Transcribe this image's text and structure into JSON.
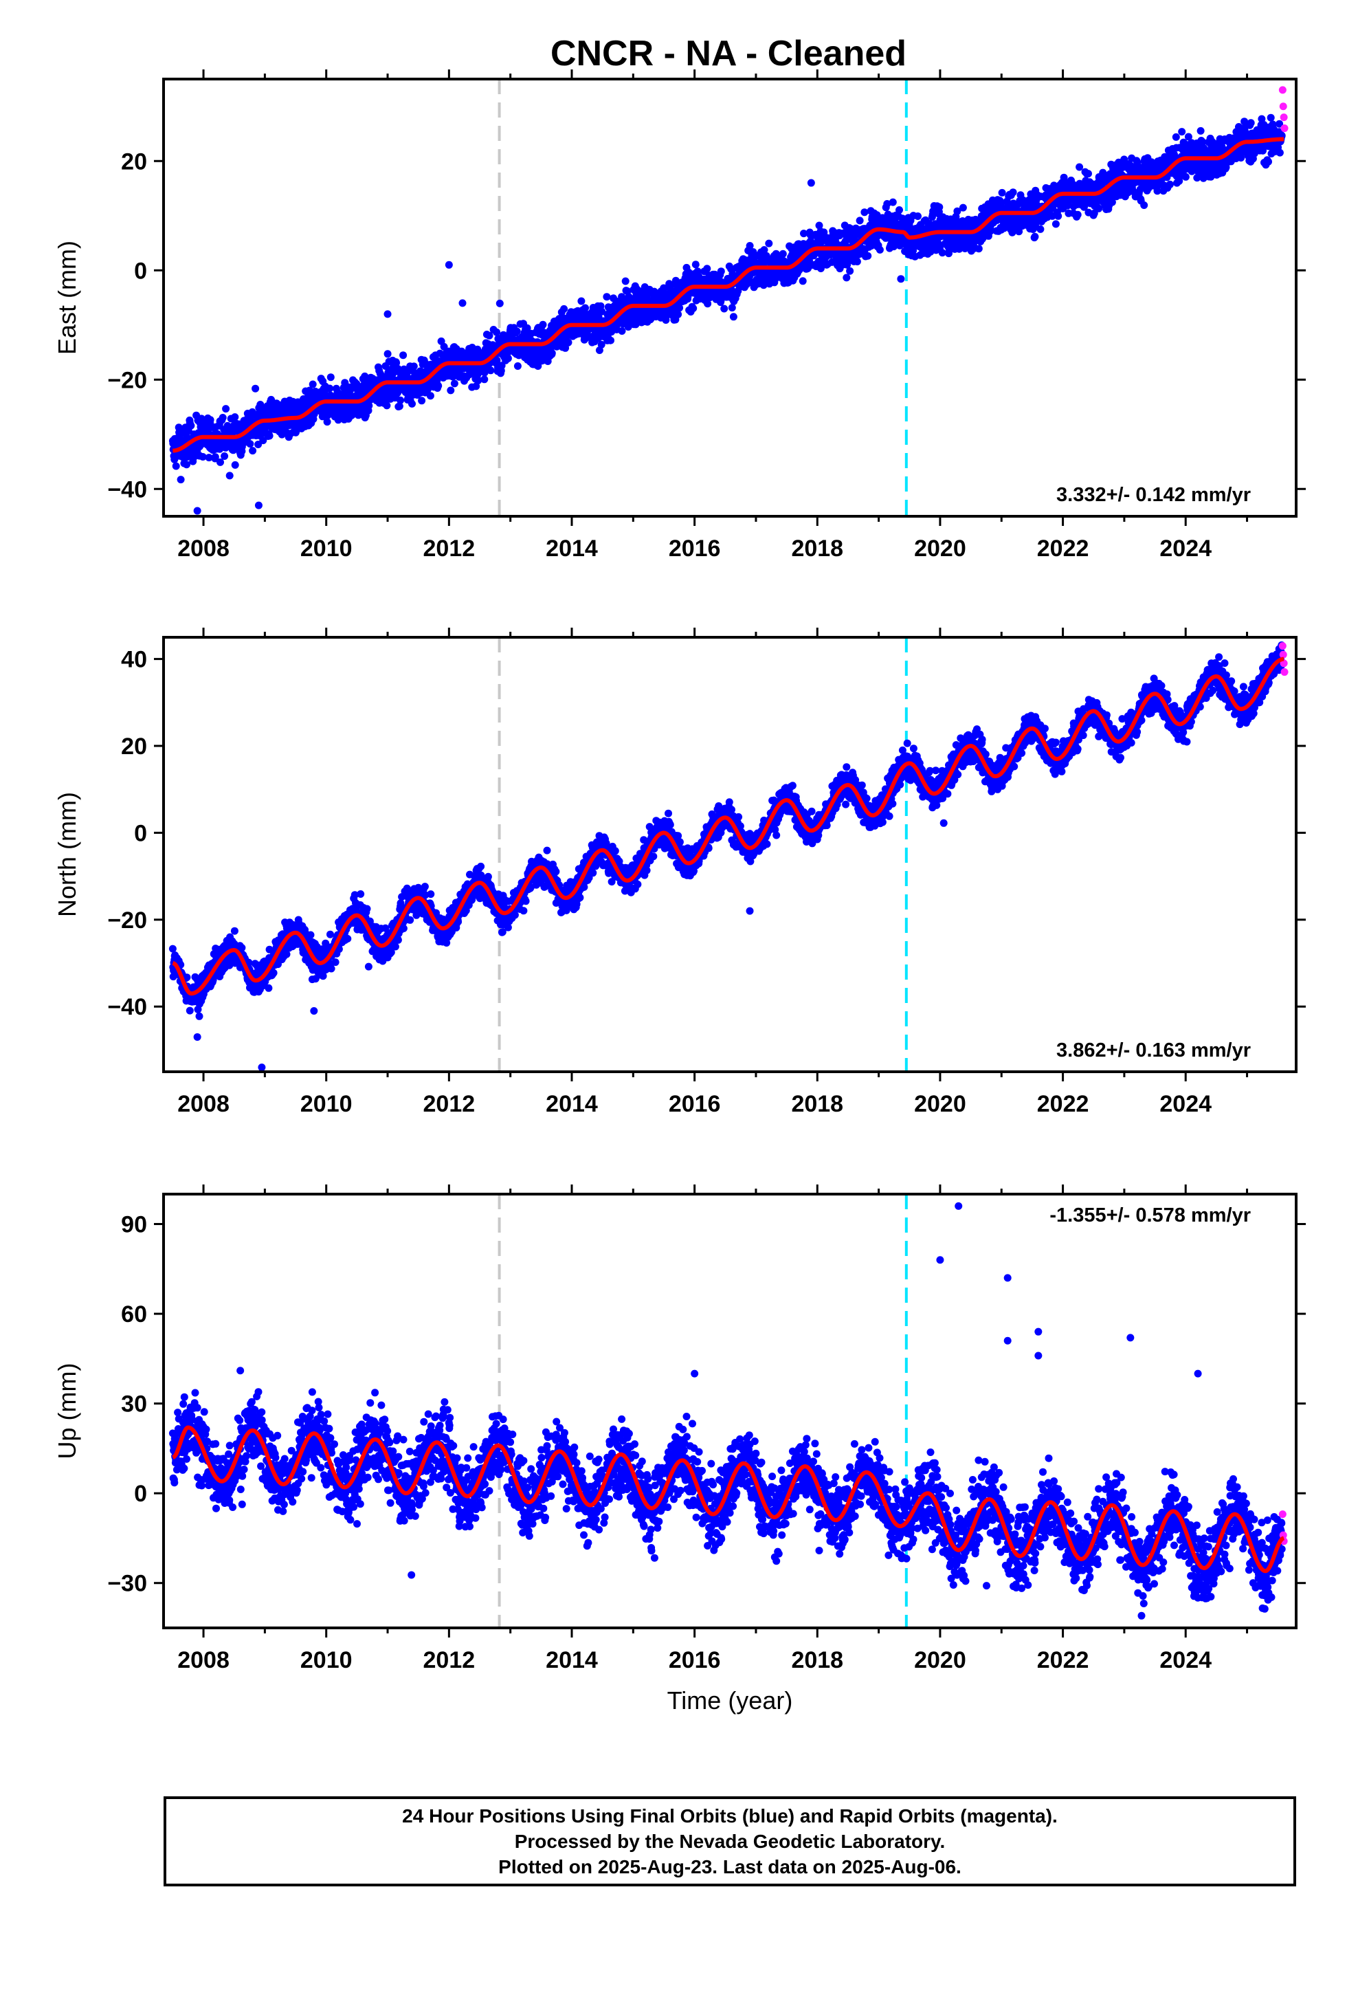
{
  "title": "CNCR  - NA - Cleaned",
  "colors": {
    "final_orbits": "#0000ff",
    "rapid_orbits": "#ff1aff",
    "model_fit": "#ff0000",
    "event_line_1": "#c8c8c8",
    "event_line_2": "#00e5ff"
  },
  "chart_data": [
    {
      "type": "scatter",
      "component": "east",
      "ylabel": "East (mm)",
      "xlabel": "",
      "xlim": [
        2007.35,
        2025.8
      ],
      "ylim": [
        -45,
        35
      ],
      "yticks": [
        -40,
        -20,
        0,
        20
      ],
      "xticks": [
        2008,
        2010,
        2012,
        2014,
        2016,
        2018,
        2020,
        2022,
        2024
      ],
      "rate_label": "3.332+/- 0.142 mm/yr",
      "rate_position": "bottom-right",
      "start_value": -33,
      "rate_mm_per_yr": 3.332,
      "seasonal_amplitude_mm": 1.2,
      "scatter_mm": 1.8,
      "offset_at_2019_45_mm": -1.0,
      "event_lines": [
        2012.82,
        2019.45
      ],
      "fit_curve": [
        [
          2007.5,
          -33
        ],
        [
          2008.0,
          -30.5
        ],
        [
          2008.5,
          -30.5
        ],
        [
          2009.0,
          -27.5
        ],
        [
          2009.5,
          -27
        ],
        [
          2010.0,
          -24
        ],
        [
          2010.5,
          -24
        ],
        [
          2011.0,
          -20.5
        ],
        [
          2011.5,
          -20.5
        ],
        [
          2012.0,
          -17
        ],
        [
          2012.5,
          -17
        ],
        [
          2013.0,
          -13.5
        ],
        [
          2013.5,
          -13.5
        ],
        [
          2014.0,
          -10
        ],
        [
          2014.5,
          -10
        ],
        [
          2015.0,
          -6.5
        ],
        [
          2015.5,
          -6.5
        ],
        [
          2016.0,
          -3
        ],
        [
          2016.5,
          -3
        ],
        [
          2017.0,
          0.5
        ],
        [
          2017.5,
          0.5
        ],
        [
          2018.0,
          4
        ],
        [
          2018.5,
          4
        ],
        [
          2019.0,
          7.5
        ],
        [
          2019.4,
          7
        ],
        [
          2019.5,
          6
        ],
        [
          2020.0,
          7
        ],
        [
          2020.5,
          7
        ],
        [
          2021.0,
          10.5
        ],
        [
          2021.5,
          10.5
        ],
        [
          2022.0,
          14
        ],
        [
          2022.5,
          14
        ],
        [
          2023.0,
          17
        ],
        [
          2023.5,
          17
        ],
        [
          2024.0,
          20.5
        ],
        [
          2024.5,
          20.5
        ],
        [
          2025.0,
          23.5
        ],
        [
          2025.6,
          24
        ]
      ],
      "outliers": [
        [
          2007.9,
          -44
        ],
        [
          2008.9,
          -43
        ],
        [
          2012.0,
          1
        ],
        [
          2011.0,
          -8
        ],
        [
          2017.9,
          16
        ]
      ],
      "rapid_points": [
        [
          2025.58,
          33
        ],
        [
          2025.59,
          30
        ],
        [
          2025.6,
          28
        ],
        [
          2025.61,
          26
        ]
      ]
    },
    {
      "type": "scatter",
      "component": "north",
      "ylabel": "North (mm)",
      "xlabel": "",
      "xlim": [
        2007.35,
        2025.8
      ],
      "ylim": [
        -55,
        45
      ],
      "yticks": [
        -40,
        -20,
        0,
        20,
        40
      ],
      "xticks": [
        2008,
        2010,
        2012,
        2014,
        2016,
        2018,
        2020,
        2022,
        2024
      ],
      "rate_label": "3.862+/- 0.163 mm/yr",
      "rate_position": "bottom-right",
      "start_value": -33,
      "rate_mm_per_yr": 3.862,
      "seasonal_amplitude_mm": 4.5,
      "scatter_mm": 1.8,
      "offset_at_2019_45_mm": 0,
      "event_lines": [
        2012.82,
        2019.45
      ],
      "fit_curve": [
        [
          2007.5,
          -30
        ],
        [
          2007.8,
          -37
        ],
        [
          2008.5,
          -27
        ],
        [
          2008.85,
          -34
        ],
        [
          2009.5,
          -23
        ],
        [
          2009.9,
          -30
        ],
        [
          2010.5,
          -19
        ],
        [
          2010.9,
          -26
        ],
        [
          2011.5,
          -15
        ],
        [
          2011.9,
          -22
        ],
        [
          2012.5,
          -11.5
        ],
        [
          2012.9,
          -18.5
        ],
        [
          2013.5,
          -8
        ],
        [
          2013.9,
          -15
        ],
        [
          2014.5,
          -4
        ],
        [
          2014.9,
          -11
        ],
        [
          2015.5,
          0
        ],
        [
          2015.9,
          -7
        ],
        [
          2016.5,
          3.5
        ],
        [
          2016.9,
          -3.5
        ],
        [
          2017.5,
          7.5
        ],
        [
          2017.9,
          0.5
        ],
        [
          2018.5,
          11
        ],
        [
          2018.9,
          4
        ],
        [
          2019.5,
          16
        ],
        [
          2019.9,
          9
        ],
        [
          2020.5,
          20
        ],
        [
          2020.9,
          13
        ],
        [
          2021.5,
          24
        ],
        [
          2021.9,
          17
        ],
        [
          2022.5,
          28
        ],
        [
          2022.9,
          21
        ],
        [
          2023.5,
          32
        ],
        [
          2023.9,
          25
        ],
        [
          2024.5,
          36
        ],
        [
          2024.9,
          28.5
        ],
        [
          2025.6,
          40
        ]
      ],
      "outliers": [
        [
          2007.9,
          -47
        ],
        [
          2008.95,
          -54
        ],
        [
          2009.8,
          -41
        ],
        [
          2016.9,
          -18
        ]
      ],
      "rapid_points": [
        [
          2025.58,
          43
        ],
        [
          2025.59,
          41
        ],
        [
          2025.6,
          39
        ],
        [
          2025.61,
          37
        ]
      ]
    },
    {
      "type": "scatter",
      "component": "up",
      "ylabel": "Up (mm)",
      "xlabel": "Time (year)",
      "xlim": [
        2007.35,
        2025.8
      ],
      "ylim": [
        -45,
        100
      ],
      "yticks": [
        -30,
        0,
        30,
        60,
        90
      ],
      "xticks": [
        2008,
        2010,
        2012,
        2014,
        2016,
        2018,
        2020,
        2022,
        2024
      ],
      "rate_label": "-1.355+/- 0.578 mm/yr",
      "rate_position": "top-right",
      "start_value": 12,
      "rate_mm_per_yr": -1.355,
      "seasonal_amplitude_mm": 9,
      "scatter_mm": 6,
      "offset_at_2019_45_mm": -2,
      "event_lines": [
        2012.82,
        2019.45
      ],
      "fit_curve": [
        [
          2007.5,
          12
        ],
        [
          2007.75,
          22
        ],
        [
          2008.3,
          4
        ],
        [
          2008.8,
          21
        ],
        [
          2009.3,
          3
        ],
        [
          2009.8,
          20
        ],
        [
          2010.3,
          2
        ],
        [
          2010.8,
          18
        ],
        [
          2011.3,
          0
        ],
        [
          2011.8,
          17
        ],
        [
          2012.3,
          -1
        ],
        [
          2012.8,
          16
        ],
        [
          2013.3,
          -3
        ],
        [
          2013.8,
          14
        ],
        [
          2014.3,
          -4
        ],
        [
          2014.8,
          13
        ],
        [
          2015.3,
          -5
        ],
        [
          2015.8,
          11
        ],
        [
          2016.3,
          -7
        ],
        [
          2016.8,
          10
        ],
        [
          2017.3,
          -8
        ],
        [
          2017.8,
          9
        ],
        [
          2018.3,
          -9
        ],
        [
          2018.8,
          7
        ],
        [
          2019.35,
          -11
        ],
        [
          2019.8,
          0
        ],
        [
          2020.3,
          -19
        ],
        [
          2020.8,
          -2
        ],
        [
          2021.3,
          -21
        ],
        [
          2021.8,
          -3
        ],
        [
          2022.3,
          -22
        ],
        [
          2022.8,
          -4
        ],
        [
          2023.3,
          -24
        ],
        [
          2023.8,
          -6
        ],
        [
          2024.3,
          -25
        ],
        [
          2024.8,
          -7
        ],
        [
          2025.3,
          -26
        ],
        [
          2025.6,
          -15
        ]
      ],
      "outliers": [
        [
          2020.3,
          96
        ],
        [
          2020.0,
          78
        ],
        [
          2021.1,
          72
        ],
        [
          2021.1,
          51
        ],
        [
          2021.6,
          54
        ],
        [
          2021.6,
          46
        ],
        [
          2023.1,
          52
        ],
        [
          2024.2,
          40
        ],
        [
          2016.0,
          40
        ],
        [
          2008.6,
          41
        ]
      ],
      "rapid_points": [
        [
          2025.58,
          -7
        ],
        [
          2025.59,
          -14
        ],
        [
          2025.6,
          -16
        ]
      ]
    }
  ],
  "caption": {
    "line1": "24 Hour Positions Using Final Orbits (blue) and Rapid Orbits (magenta).",
    "line2": "Processed by the Nevada Geodetic Laboratory.",
    "line3": "Plotted on 2025-Aug-23. Last data on 2025-Aug-06."
  }
}
